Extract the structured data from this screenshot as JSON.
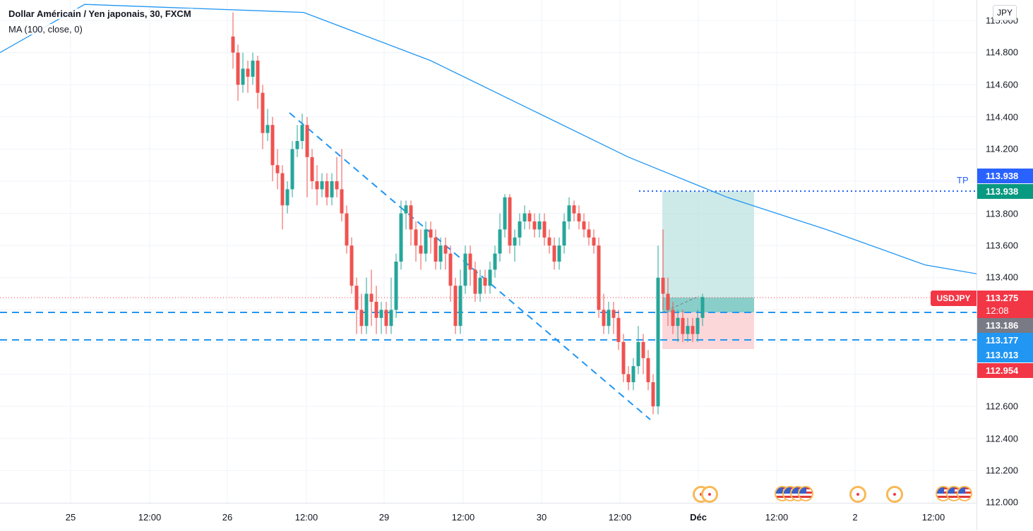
{
  "legend": {
    "title": "Dollar Américain / Yen japonais, 30, FXCM",
    "indicator": "MA (100, close, 0)"
  },
  "currency_button": "JPY",
  "symbol": "USDJPY",
  "tp_label": "TP",
  "price_axis": {
    "ticks": [
      "115.000",
      "114.800",
      "114.600",
      "114.400",
      "114.200",
      "113.800",
      "113.600",
      "113.400",
      "112.600",
      "112.400",
      "112.200",
      "112.000"
    ]
  },
  "time_axis": {
    "ticks": [
      "25",
      "12:00",
      "26",
      "12:00",
      "29",
      "12:00",
      "30",
      "12:00",
      "Déc",
      "12:00",
      "2",
      "12:00"
    ]
  },
  "price_tags": {
    "tp_top": "113.938",
    "tp_green": "113.938",
    "current": "113.275",
    "countdown": "12:08",
    "level_gray": "113.186",
    "level_blue1": "113.177",
    "level_blue2": "113.013",
    "stop": "112.954"
  },
  "colors": {
    "up": "#26a69a",
    "down": "#ef5350",
    "ma_line": "#2196f3",
    "trendline": "#2196f3",
    "tp_blue": "#2962ff",
    "tp_green": "#089981",
    "current_red": "#f23645",
    "gray_tag": "#787b86",
    "level_blue": "#2196f3",
    "stop_red": "#f23645",
    "target_zone": "#b2dfdb",
    "stop_zone": "#fbd0d3"
  },
  "chart_data": {
    "type": "candlestick",
    "title": "Dollar Américain / Yen japonais, 30, FXCM",
    "timeframe": "30",
    "ylim": [
      112.0,
      115.0
    ],
    "grid": true,
    "indicator": "MA (100, close, 0)",
    "levels": {
      "take_profit": 113.938,
      "entry": 113.186,
      "support_1": 113.177,
      "support_2": 113.013,
      "stop": 112.954,
      "last_price": 113.275
    },
    "trendline": {
      "start": [
        14,
        114.42
      ],
      "end": [
        156,
        112.52
      ]
    },
    "ma": [
      [
        0,
        115.05
      ],
      [
        20,
        115.1
      ],
      [
        40,
        115.05
      ],
      [
        60,
        114.75
      ],
      [
        80,
        114.45
      ],
      [
        100,
        114.15
      ],
      [
        120,
        113.9
      ],
      [
        140,
        113.7
      ],
      [
        160,
        113.48
      ],
      [
        175,
        113.4
      ]
    ],
    "candles": [
      [
        114.9,
        114.8,
        115.05,
        114.7
      ],
      [
        114.8,
        114.6,
        114.85,
        114.5
      ],
      [
        114.6,
        114.7,
        114.8,
        114.55
      ],
      [
        114.7,
        114.65,
        114.75,
        114.55
      ],
      [
        114.65,
        114.75,
        114.8,
        114.6
      ],
      [
        114.75,
        114.55,
        114.78,
        114.45
      ],
      [
        114.55,
        114.3,
        114.6,
        114.2
      ],
      [
        114.3,
        114.35,
        114.45,
        114.25
      ],
      [
        114.35,
        114.1,
        114.4,
        114.0
      ],
      [
        114.1,
        114.05,
        114.2,
        113.95
      ],
      [
        114.05,
        113.85,
        114.1,
        113.7
      ],
      [
        113.85,
        113.95,
        114.0,
        113.8
      ],
      [
        113.95,
        114.2,
        114.25,
        113.9
      ],
      [
        114.2,
        114.25,
        114.35,
        114.15
      ],
      [
        114.25,
        114.35,
        114.42,
        114.2
      ],
      [
        114.35,
        114.15,
        114.4,
        113.9
      ],
      [
        114.15,
        114.0,
        114.2,
        113.95
      ],
      [
        114.0,
        113.95,
        114.1,
        113.85
      ],
      [
        113.95,
        114.0,
        114.05,
        113.9
      ],
      [
        114.0,
        113.9,
        114.05,
        113.85
      ],
      [
        113.9,
        114.0,
        114.05,
        113.85
      ],
      [
        114.0,
        113.95,
        114.15,
        113.9
      ],
      [
        113.95,
        113.8,
        114.2,
        113.75
      ],
      [
        113.8,
        113.6,
        113.85,
        113.55
      ],
      [
        113.6,
        113.35,
        113.65,
        113.3
      ],
      [
        113.35,
        113.2,
        113.4,
        113.05
      ],
      [
        113.2,
        113.1,
        113.3,
        113.05
      ],
      [
        113.1,
        113.3,
        113.4,
        113.05
      ],
      [
        113.3,
        113.25,
        113.45,
        113.1
      ],
      [
        113.25,
        113.15,
        113.35,
        113.05
      ],
      [
        113.15,
        113.2,
        113.25,
        113.05
      ],
      [
        113.2,
        113.1,
        113.25,
        113.05
      ],
      [
        113.1,
        113.2,
        113.4,
        113.05
      ],
      [
        113.2,
        113.5,
        113.55,
        113.15
      ],
      [
        113.5,
        113.8,
        113.88,
        113.45
      ],
      [
        113.8,
        113.85,
        113.88,
        113.7
      ],
      [
        113.85,
        113.7,
        113.88,
        113.6
      ],
      [
        113.7,
        113.6,
        113.75,
        113.5
      ],
      [
        113.6,
        113.55,
        113.7,
        113.45
      ],
      [
        113.55,
        113.7,
        113.75,
        113.5
      ],
      [
        113.7,
        113.65,
        113.75,
        113.55
      ],
      [
        113.65,
        113.5,
        113.7,
        113.45
      ],
      [
        113.5,
        113.6,
        113.65,
        113.45
      ],
      [
        113.6,
        113.55,
        113.65,
        113.45
      ],
      [
        113.55,
        113.35,
        113.6,
        113.25
      ],
      [
        113.35,
        113.1,
        113.4,
        113.05
      ],
      [
        113.1,
        113.35,
        113.45,
        113.05
      ],
      [
        113.35,
        113.55,
        113.6,
        113.3
      ],
      [
        113.55,
        113.45,
        113.6,
        113.35
      ],
      [
        113.45,
        113.3,
        113.5,
        113.25
      ],
      [
        113.3,
        113.4,
        113.45,
        113.25
      ],
      [
        113.4,
        113.35,
        113.45,
        113.3
      ],
      [
        113.35,
        113.45,
        113.5,
        113.3
      ],
      [
        113.45,
        113.55,
        113.6,
        113.4
      ],
      [
        113.55,
        113.7,
        113.8,
        113.5
      ],
      [
        113.7,
        113.9,
        113.92,
        113.65
      ],
      [
        113.9,
        113.6,
        113.92,
        113.55
      ],
      [
        113.6,
        113.65,
        113.7,
        113.5
      ],
      [
        113.65,
        113.75,
        113.8,
        113.6
      ],
      [
        113.75,
        113.8,
        113.85,
        113.7
      ],
      [
        113.8,
        113.75,
        113.82,
        113.7
      ],
      [
        113.75,
        113.7,
        113.8,
        113.65
      ],
      [
        113.7,
        113.75,
        113.8,
        113.65
      ],
      [
        113.75,
        113.65,
        113.8,
        113.6
      ],
      [
        113.65,
        113.6,
        113.7,
        113.55
      ],
      [
        113.6,
        113.5,
        113.65,
        113.45
      ],
      [
        113.5,
        113.6,
        113.65,
        113.45
      ],
      [
        113.6,
        113.75,
        113.8,
        113.55
      ],
      [
        113.75,
        113.85,
        113.9,
        113.7
      ],
      [
        113.85,
        113.8,
        113.88,
        113.75
      ],
      [
        113.8,
        113.75,
        113.85,
        113.7
      ],
      [
        113.75,
        113.7,
        113.8,
        113.65
      ],
      [
        113.7,
        113.65,
        113.75,
        113.6
      ],
      [
        113.65,
        113.6,
        113.7,
        113.55
      ],
      [
        113.6,
        113.2,
        113.65,
        113.15
      ],
      [
        113.2,
        113.1,
        113.3,
        113.05
      ],
      [
        113.1,
        113.2,
        113.25,
        113.05
      ],
      [
        113.2,
        113.15,
        113.25,
        113.05
      ],
      [
        113.15,
        113.0,
        113.2,
        112.95
      ],
      [
        113.0,
        112.8,
        113.05,
        112.75
      ],
      [
        112.8,
        112.75,
        112.85,
        112.7
      ],
      [
        112.75,
        112.85,
        112.9,
        112.7
      ],
      [
        112.85,
        113.0,
        113.1,
        112.8
      ],
      [
        113.0,
        112.9,
        113.05,
        112.8
      ],
      [
        112.9,
        112.75,
        112.95,
        112.7
      ],
      [
        112.75,
        112.6,
        112.8,
        112.55
      ],
      [
        112.6,
        113.4,
        113.6,
        112.55
      ],
      [
        113.4,
        113.3,
        113.7,
        113.2
      ],
      [
        113.3,
        113.2,
        113.4,
        113.1
      ],
      [
        113.2,
        113.1,
        113.25,
        113.05
      ],
      [
        113.1,
        113.15,
        113.2,
        113.0
      ],
      [
        113.15,
        113.05,
        113.2,
        113.0
      ],
      [
        113.05,
        113.1,
        113.15,
        113.0
      ],
      [
        113.1,
        113.05,
        113.15,
        113.0
      ],
      [
        113.05,
        113.15,
        113.2,
        113.0
      ],
      [
        113.15,
        113.28,
        113.3,
        113.1
      ]
    ]
  },
  "events": {
    "icons": [
      "event-icon",
      "event-icon",
      "us-flag-icon",
      "us-flag-icon",
      "us-flag-icon",
      "us-flag-icon",
      "event-icon",
      "event-icon",
      "us-flag-icon",
      "us-flag-icon",
      "us-flag-icon"
    ]
  }
}
